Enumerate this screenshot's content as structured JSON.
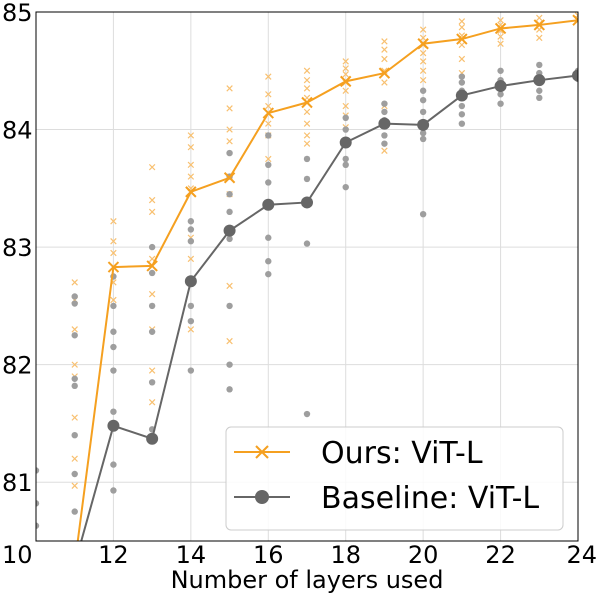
{
  "chart_data": {
    "type": "line",
    "title": "",
    "xlabel": "Number of layers used",
    "ylabel": "",
    "xlim": [
      10,
      24
    ],
    "ylim": [
      80.5,
      85
    ],
    "xticks": [
      "10",
      "12",
      "14",
      "16",
      "18",
      "20",
      "22",
      "24"
    ],
    "yticks": [
      "81",
      "82",
      "83",
      "84",
      "85"
    ],
    "grid": true,
    "legend_position": "bottom-right",
    "x": [
      11,
      12,
      13,
      14,
      15,
      16,
      17,
      18,
      19,
      20,
      21,
      22,
      23,
      24
    ],
    "series": [
      {
        "name": "Ours: ViT-L",
        "marker": "x",
        "color": "#f5a020",
        "values": [
          80.3,
          82.83,
          82.84,
          83.47,
          83.59,
          84.14,
          84.23,
          84.41,
          84.48,
          84.73,
          84.77,
          84.86,
          84.89,
          84.93
        ],
        "scatter": [
          [
            11,
            82.7
          ],
          [
            11,
            82.55
          ],
          [
            11,
            82.3
          ],
          [
            11,
            82.0
          ],
          [
            11,
            81.9
          ],
          [
            11,
            81.55
          ],
          [
            11,
            81.2
          ],
          [
            11,
            80.97
          ],
          [
            12,
            83.22
          ],
          [
            12,
            83.05
          ],
          [
            12,
            82.95
          ],
          [
            12,
            82.7
          ],
          [
            12,
            82.55
          ],
          [
            13,
            83.68
          ],
          [
            13,
            83.4
          ],
          [
            13,
            83.3
          ],
          [
            13,
            82.9
          ],
          [
            13,
            82.6
          ],
          [
            13,
            82.3
          ],
          [
            13,
            81.95
          ],
          [
            13,
            81.68
          ],
          [
            14,
            83.95
          ],
          [
            14,
            83.85
          ],
          [
            14,
            83.7
          ],
          [
            14,
            83.6
          ],
          [
            14,
            83.5
          ],
          [
            14,
            83.08
          ],
          [
            14,
            82.9
          ],
          [
            14,
            82.3
          ],
          [
            15,
            84.35
          ],
          [
            15,
            84.18
          ],
          [
            15,
            84.0
          ],
          [
            15,
            83.9
          ],
          [
            15,
            83.6
          ],
          [
            15,
            83.45
          ],
          [
            15,
            82.67
          ],
          [
            15,
            82.2
          ],
          [
            16,
            84.45
          ],
          [
            16,
            84.3
          ],
          [
            16,
            84.2
          ],
          [
            16,
            84.05
          ],
          [
            16,
            83.95
          ],
          [
            16,
            83.75
          ],
          [
            17,
            84.5
          ],
          [
            17,
            84.42
          ],
          [
            17,
            84.35
          ],
          [
            17,
            84.27
          ],
          [
            17,
            84.15
          ],
          [
            17,
            84.05
          ],
          [
            17,
            83.95
          ],
          [
            17,
            83.88
          ],
          [
            18,
            84.58
          ],
          [
            18,
            84.52
          ],
          [
            18,
            84.47
          ],
          [
            18,
            84.4
          ],
          [
            18,
            84.33
          ],
          [
            18,
            84.2
          ],
          [
            18,
            84.12
          ],
          [
            18,
            84.02
          ],
          [
            19,
            84.75
          ],
          [
            19,
            84.68
          ],
          [
            19,
            84.6
          ],
          [
            19,
            84.5
          ],
          [
            19,
            84.4
          ],
          [
            19,
            84.2
          ],
          [
            19,
            84.05
          ],
          [
            19,
            83.82
          ],
          [
            20,
            84.85
          ],
          [
            20,
            84.78
          ],
          [
            20,
            84.72
          ],
          [
            20,
            84.65
          ],
          [
            20,
            84.58
          ],
          [
            20,
            84.5
          ],
          [
            20,
            84.42
          ],
          [
            21,
            84.92
          ],
          [
            21,
            84.87
          ],
          [
            21,
            84.8
          ],
          [
            21,
            84.72
          ],
          [
            21,
            84.6
          ],
          [
            21,
            84.48
          ],
          [
            22,
            84.93
          ],
          [
            22,
            84.89
          ],
          [
            22,
            84.84
          ],
          [
            22,
            84.79
          ],
          [
            22,
            84.73
          ],
          [
            23,
            84.95
          ],
          [
            23,
            84.9
          ],
          [
            23,
            84.85
          ],
          [
            23,
            84.78
          ],
          [
            24,
            84.97
          ],
          [
            24,
            84.94
          ]
        ]
      },
      {
        "name": "Baseline: ViT-L",
        "marker": "o",
        "color": "#666666",
        "values": [
          80.3,
          81.48,
          81.37,
          82.71,
          83.14,
          83.36,
          83.38,
          83.89,
          84.05,
          84.04,
          84.29,
          84.37,
          84.42,
          84.46
        ],
        "scatter": [
          [
            10,
            81.1
          ],
          [
            10,
            80.82
          ],
          [
            10,
            80.63
          ],
          [
            11,
            82.58
          ],
          [
            11,
            82.52
          ],
          [
            11,
            82.25
          ],
          [
            11,
            81.88
          ],
          [
            11,
            81.82
          ],
          [
            11,
            81.4
          ],
          [
            11,
            81.07
          ],
          [
            11,
            80.75
          ],
          [
            12,
            82.75
          ],
          [
            12,
            82.5
          ],
          [
            12,
            82.28
          ],
          [
            12,
            82.15
          ],
          [
            12,
            81.95
          ],
          [
            12,
            81.6
          ],
          [
            12,
            81.15
          ],
          [
            12,
            80.93
          ],
          [
            13,
            83.0
          ],
          [
            13,
            82.78
          ],
          [
            13,
            82.5
          ],
          [
            13,
            82.28
          ],
          [
            13,
            81.85
          ],
          [
            13,
            81.45
          ],
          [
            14,
            83.22
          ],
          [
            14,
            83.15
          ],
          [
            14,
            83.05
          ],
          [
            14,
            82.5
          ],
          [
            14,
            82.37
          ],
          [
            14,
            81.95
          ],
          [
            15,
            83.8
          ],
          [
            15,
            83.6
          ],
          [
            15,
            83.45
          ],
          [
            15,
            83.3
          ],
          [
            15,
            83.07
          ],
          [
            15,
            82.5
          ],
          [
            15,
            82.0
          ],
          [
            15,
            81.79
          ],
          [
            16,
            83.95
          ],
          [
            16,
            83.7
          ],
          [
            16,
            83.55
          ],
          [
            16,
            83.08
          ],
          [
            16,
            82.88
          ],
          [
            16,
            82.77
          ],
          [
            17,
            83.75
          ],
          [
            17,
            83.58
          ],
          [
            17,
            83.03
          ],
          [
            17,
            81.58
          ],
          [
            18,
            84.1
          ],
          [
            18,
            84.0
          ],
          [
            18,
            83.75
          ],
          [
            18,
            83.7
          ],
          [
            18,
            83.51
          ],
          [
            19,
            84.22
          ],
          [
            19,
            84.15
          ],
          [
            19,
            84.08
          ],
          [
            19,
            83.95
          ],
          [
            19,
            83.88
          ],
          [
            20,
            84.33
          ],
          [
            20,
            84.25
          ],
          [
            20,
            84.15
          ],
          [
            20,
            83.97
          ],
          [
            20,
            83.92
          ],
          [
            20,
            83.28
          ],
          [
            21,
            84.45
          ],
          [
            21,
            84.4
          ],
          [
            21,
            84.33
          ],
          [
            21,
            84.2
          ],
          [
            21,
            84.13
          ],
          [
            21,
            84.05
          ],
          [
            22,
            84.5
          ],
          [
            22,
            84.42
          ],
          [
            22,
            84.35
          ],
          [
            22,
            84.3
          ],
          [
            22,
            84.22
          ],
          [
            23,
            84.55
          ],
          [
            23,
            84.48
          ],
          [
            23,
            84.4
          ],
          [
            23,
            84.33
          ],
          [
            23,
            84.27
          ],
          [
            24,
            84.5
          ],
          [
            24,
            84.43
          ]
        ]
      }
    ]
  }
}
